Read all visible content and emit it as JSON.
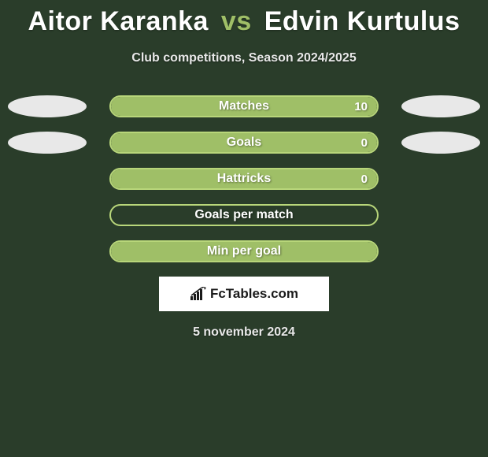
{
  "title": {
    "player1": "Aitor Karanka",
    "vs": "vs",
    "player2": "Edvin Kurtulus",
    "player1_color": "#ffffff",
    "vs_color": "#9fbf67",
    "player2_color": "#ffffff",
    "fontsize": 34
  },
  "subtitle": "Club competitions, Season 2024/2025",
  "background_color": "#2a3d2a",
  "ellipse_color": "#e8e8e8",
  "stats": [
    {
      "label": "Matches",
      "value": "10",
      "bar_border": "#b8d67a",
      "fill_color": "#9fbf67",
      "fill_pct": 100,
      "show_left_ellipse": true,
      "show_right_ellipse": true,
      "show_value": true
    },
    {
      "label": "Goals",
      "value": "0",
      "bar_border": "#b8d67a",
      "fill_color": "#9fbf67",
      "fill_pct": 100,
      "show_left_ellipse": true,
      "show_right_ellipse": true,
      "show_value": true
    },
    {
      "label": "Hattricks",
      "value": "0",
      "bar_border": "#b8d67a",
      "fill_color": "#9fbf67",
      "fill_pct": 100,
      "show_left_ellipse": false,
      "show_right_ellipse": false,
      "show_value": true
    },
    {
      "label": "Goals per match",
      "value": "",
      "bar_border": "#b8d67a",
      "fill_color": "#9fbf67",
      "fill_pct": 0,
      "show_left_ellipse": false,
      "show_right_ellipse": false,
      "show_value": false
    },
    {
      "label": "Min per goal",
      "value": "",
      "bar_border": "#b8d67a",
      "fill_color": "#9fbf67",
      "fill_pct": 100,
      "show_left_ellipse": false,
      "show_right_ellipse": false,
      "show_value": false
    }
  ],
  "logo": {
    "text": "FcTables.com",
    "box_bg": "#ffffff",
    "text_color": "#1a1a1a"
  },
  "date": "5 november 2024"
}
